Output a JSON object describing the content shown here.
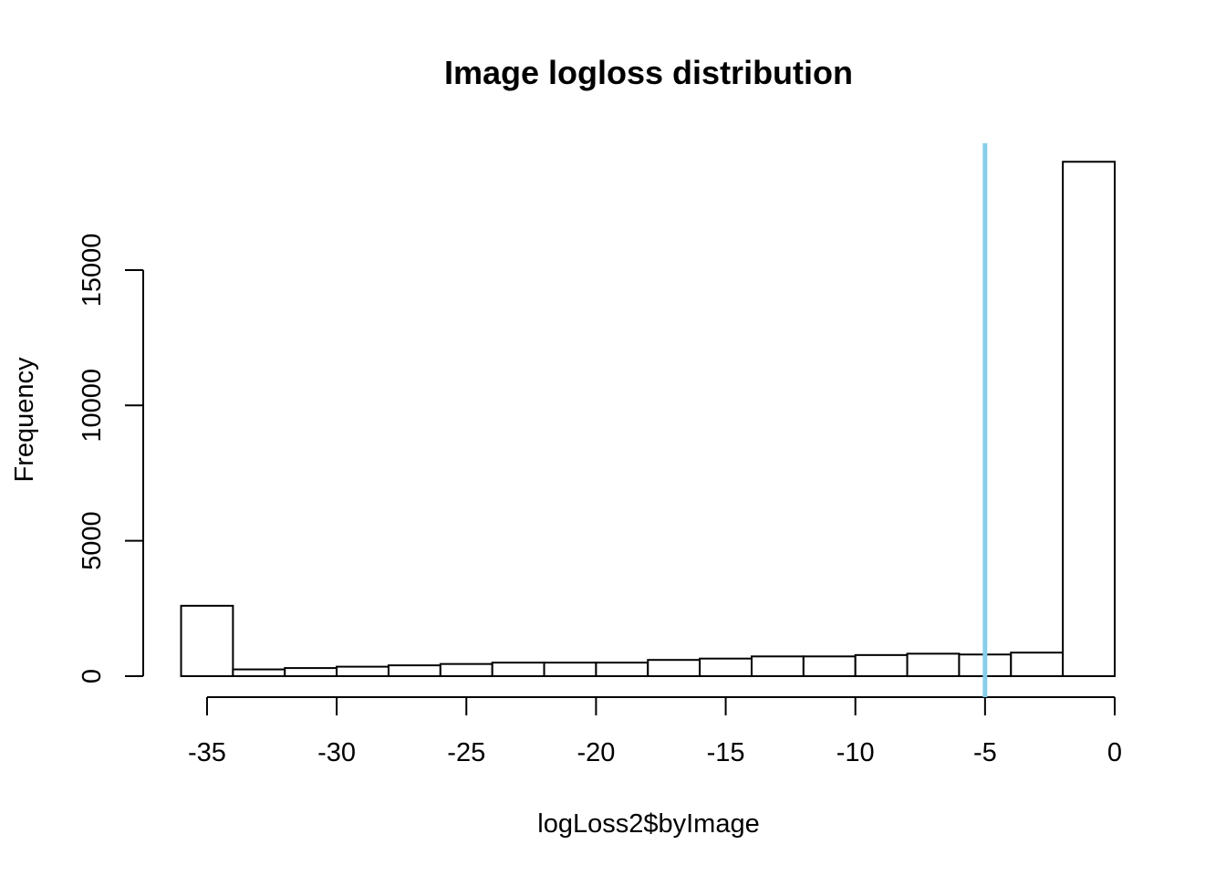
{
  "chart_data": {
    "type": "bar",
    "title": "Image logloss distribution",
    "xlabel": "logLoss2$byImage",
    "ylabel": "Frequency",
    "bin_width": 2,
    "bins": [
      {
        "start": -36,
        "end": -34,
        "count": 2600
      },
      {
        "start": -34,
        "end": -32,
        "count": 250
      },
      {
        "start": -32,
        "end": -30,
        "count": 300
      },
      {
        "start": -30,
        "end": -28,
        "count": 350
      },
      {
        "start": -28,
        "end": -26,
        "count": 400
      },
      {
        "start": -26,
        "end": -24,
        "count": 450
      },
      {
        "start": -24,
        "end": -22,
        "count": 500
      },
      {
        "start": -22,
        "end": -20,
        "count": 500
      },
      {
        "start": -20,
        "end": -18,
        "count": 500
      },
      {
        "start": -18,
        "end": -16,
        "count": 600
      },
      {
        "start": -16,
        "end": -14,
        "count": 650
      },
      {
        "start": -14,
        "end": -12,
        "count": 730
      },
      {
        "start": -12,
        "end": -10,
        "count": 730
      },
      {
        "start": -10,
        "end": -8,
        "count": 780
      },
      {
        "start": -8,
        "end": -6,
        "count": 830
      },
      {
        "start": -6,
        "end": -4,
        "count": 800
      },
      {
        "start": -4,
        "end": -2,
        "count": 870
      },
      {
        "start": -2,
        "end": 0,
        "count": 19000
      }
    ],
    "xlim": [
      -36,
      0
    ],
    "ylim": [
      0,
      20000
    ],
    "x_ticks": [
      -35,
      -30,
      -25,
      -20,
      -15,
      -10,
      -5,
      0
    ],
    "y_ticks": [
      0,
      5000,
      10000,
      15000
    ],
    "reference_line": {
      "x": -5,
      "color": "#87CEEB"
    },
    "grid": false,
    "legend": "none",
    "bar_fill": "#ffffff",
    "bar_stroke": "#000000"
  }
}
